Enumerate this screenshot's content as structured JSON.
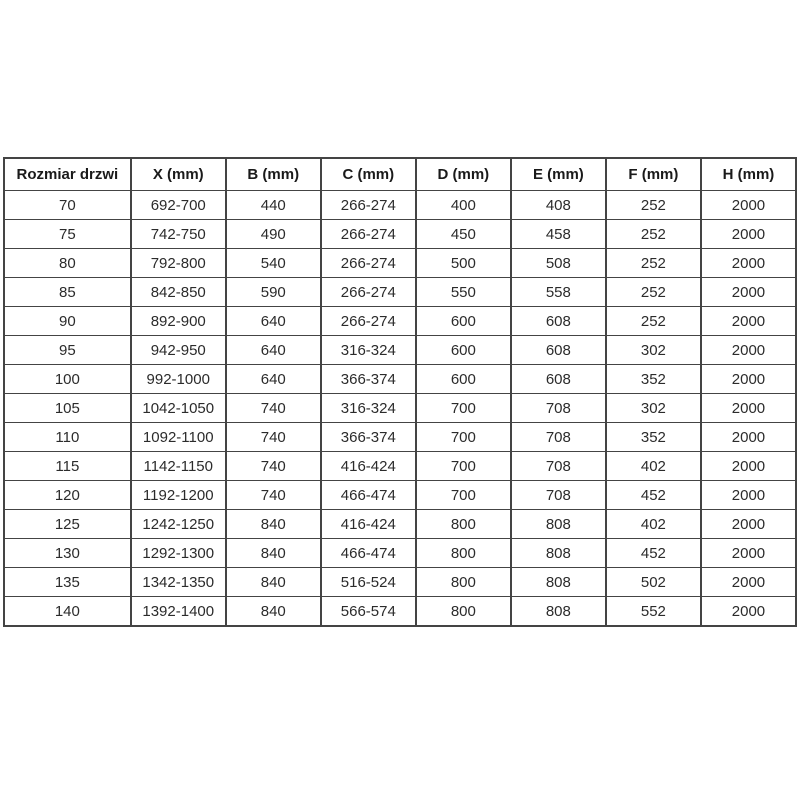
{
  "table": {
    "name": "door-size-specification-table",
    "headers": [
      "Rozmiar drzwi",
      "X (mm)",
      "B (mm)",
      "C (mm)",
      "D (mm)",
      "E (mm)",
      "F (mm)",
      "H (mm)"
    ],
    "rows": [
      [
        "70",
        "692-700",
        "440",
        "266-274",
        "400",
        "408",
        "252",
        "2000"
      ],
      [
        "75",
        "742-750",
        "490",
        "266-274",
        "450",
        "458",
        "252",
        "2000"
      ],
      [
        "80",
        "792-800",
        "540",
        "266-274",
        "500",
        "508",
        "252",
        "2000"
      ],
      [
        "85",
        "842-850",
        "590",
        "266-274",
        "550",
        "558",
        "252",
        "2000"
      ],
      [
        "90",
        "892-900",
        "640",
        "266-274",
        "600",
        "608",
        "252",
        "2000"
      ],
      [
        "95",
        "942-950",
        "640",
        "316-324",
        "600",
        "608",
        "302",
        "2000"
      ],
      [
        "100",
        "992-1000",
        "640",
        "366-374",
        "600",
        "608",
        "352",
        "2000"
      ],
      [
        "105",
        "1042-1050",
        "740",
        "316-324",
        "700",
        "708",
        "302",
        "2000"
      ],
      [
        "110",
        "1092-1100",
        "740",
        "366-374",
        "700",
        "708",
        "352",
        "2000"
      ],
      [
        "115",
        "1142-1150",
        "740",
        "416-424",
        "700",
        "708",
        "402",
        "2000"
      ],
      [
        "120",
        "1192-1200",
        "740",
        "466-474",
        "700",
        "708",
        "452",
        "2000"
      ],
      [
        "125",
        "1242-1250",
        "840",
        "416-424",
        "800",
        "808",
        "402",
        "2000"
      ],
      [
        "130",
        "1292-1300",
        "840",
        "466-474",
        "800",
        "808",
        "452",
        "2000"
      ],
      [
        "135",
        "1342-1350",
        "840",
        "516-524",
        "800",
        "808",
        "502",
        "2000"
      ],
      [
        "140",
        "1392-1400",
        "840",
        "566-574",
        "800",
        "808",
        "552",
        "2000"
      ]
    ],
    "colors": {
      "border": "#444444",
      "header_text": "#1a1a1a",
      "body_text": "#2b2b2b",
      "background": "#ffffff"
    }
  }
}
